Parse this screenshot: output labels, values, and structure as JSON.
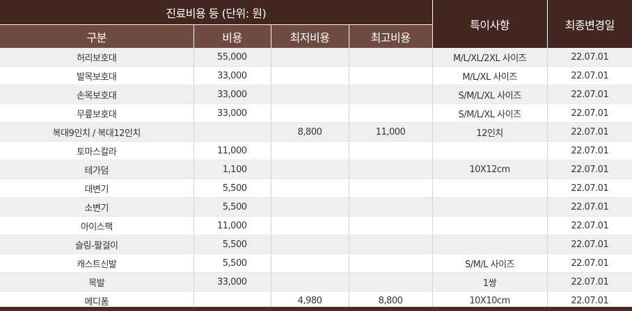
{
  "header": {
    "group_title": "진료비용 등 (단위: 원)",
    "col_category": "구분",
    "col_cost": "비용",
    "col_min": "최저비용",
    "col_max": "최고비용",
    "col_note": "특이사항",
    "col_updated": "최종변경일"
  },
  "rows": [
    {
      "category": "허리보호대",
      "cost": "55,000",
      "min": "",
      "max": "",
      "note": "M/L/XL/2XL 사이즈",
      "updated": "22.07.01"
    },
    {
      "category": "발목보호대",
      "cost": "33,000",
      "min": "",
      "max": "",
      "note": "M/L/XL 사이즈",
      "updated": "22.07.01"
    },
    {
      "category": "손목보호대",
      "cost": "33,000",
      "min": "",
      "max": "",
      "note": "S/M/L/XL 사이즈",
      "updated": "22.07.01"
    },
    {
      "category": "무릎보호대",
      "cost": "33,000",
      "min": "",
      "max": "",
      "note": "S/M/L/XL 사이즈",
      "updated": "22.07.01"
    },
    {
      "category": "복대9인치 / 복대12인치",
      "cost": "",
      "min": "8,800",
      "max": "11,000",
      "note": "12인치",
      "updated": "22.07.01"
    },
    {
      "category": "토마스칼라",
      "cost": "11,000",
      "min": "",
      "max": "",
      "note": "",
      "updated": "22.07.01"
    },
    {
      "category": "테가덤",
      "cost": "1,100",
      "min": "",
      "max": "",
      "note": "10X12cm",
      "updated": "22.07.01"
    },
    {
      "category": "대변기",
      "cost": "5,500",
      "min": "",
      "max": "",
      "note": "",
      "updated": "22.07.01"
    },
    {
      "category": "소변기",
      "cost": "5,500",
      "min": "",
      "max": "",
      "note": "",
      "updated": "22.07.01"
    },
    {
      "category": "아이스팩",
      "cost": "11,000",
      "min": "",
      "max": "",
      "note": "",
      "updated": "22.07.01"
    },
    {
      "category": "슬링-팔걸이",
      "cost": "5,500",
      "min": "",
      "max": "",
      "note": "",
      "updated": "22.07.01"
    },
    {
      "category": "캐스트신발",
      "cost": "5,500",
      "min": "",
      "max": "",
      "note": "S/M/L 사이즈",
      "updated": "22.07.01"
    },
    {
      "category": "목발",
      "cost": "33,000",
      "min": "",
      "max": "",
      "note": "1쌍",
      "updated": "22.07.01"
    },
    {
      "category": "메디폼",
      "cost": "",
      "min": "4,980",
      "max": "8,800",
      "note": "10X10cm",
      "updated": "22.07.01"
    }
  ],
  "colors": {
    "header_dark": "#432620",
    "header_mid": "#6e4a40",
    "row_shade": "#efefef"
  }
}
